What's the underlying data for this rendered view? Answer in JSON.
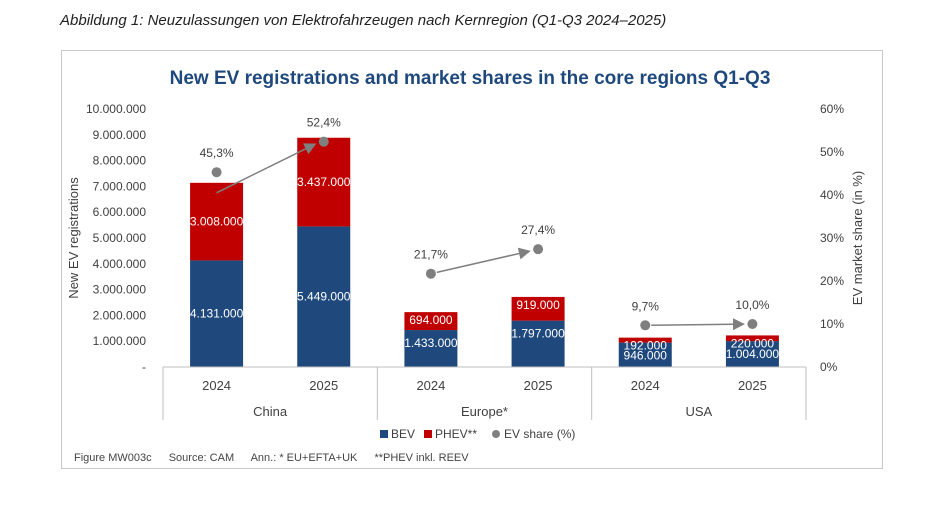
{
  "caption": "Abbildung 1: Neuzulassungen von Elektrofahrzeugen nach Kernregion (Q1-Q3 2024–2025)",
  "footnote": {
    "figure": "Figure MW003c",
    "source": "Source: CAM",
    "ann": "Ann.: * EU+EFTA+UK",
    "phev": "**PHEV inkl. REEV"
  },
  "colors": {
    "bev": "#1f497d",
    "phev": "#c00000",
    "share": "#7f7f7f",
    "title": "#1f497d"
  },
  "chart_data": {
    "type": "bar",
    "title": "New EV registrations and market shares in the core regions Q1-Q3",
    "ylabel": "New EV registrations",
    "y2label": "EV market share (in %)",
    "ylim": [
      0,
      10000000
    ],
    "y2lim": [
      0,
      60
    ],
    "yticks": [
      "-",
      "1.000.000",
      "2.000.000",
      "3.000.000",
      "4.000.000",
      "5.000.000",
      "6.000.000",
      "7.000.000",
      "8.000.000",
      "9.000.000",
      "10.000.000"
    ],
    "y2ticks": [
      "0%",
      "10%",
      "20%",
      "30%",
      "40%",
      "50%",
      "60%"
    ],
    "groups": [
      "China",
      "Europe*",
      "USA"
    ],
    "categories": [
      "2024",
      "2025",
      "2024",
      "2025",
      "2024",
      "2025"
    ],
    "series": [
      {
        "name": "BEV",
        "values": [
          4131000,
          5449000,
          1433000,
          1797000,
          946000,
          1004000
        ],
        "labels": [
          "4.131.000",
          "5.449.000",
          "1.433.000",
          "1.797.000",
          "946.000",
          "1.004.000"
        ]
      },
      {
        "name": "PHEV**",
        "values": [
          3008000,
          3437000,
          694000,
          919000,
          192000,
          220000
        ],
        "labels": [
          "3.008.000",
          "3.437.000",
          "694.000",
          "919.000",
          "192.000",
          "220.000"
        ]
      }
    ],
    "share": {
      "name": "EV share (%)",
      "values": [
        45.3,
        52.4,
        21.7,
        27.4,
        9.7,
        10.0
      ],
      "labels": [
        "45,3%",
        "52,4%",
        "21,7%",
        "27,4%",
        "9,7%",
        "10,0%"
      ]
    },
    "legend": [
      "BEV",
      "PHEV**",
      "EV share (%)"
    ]
  }
}
